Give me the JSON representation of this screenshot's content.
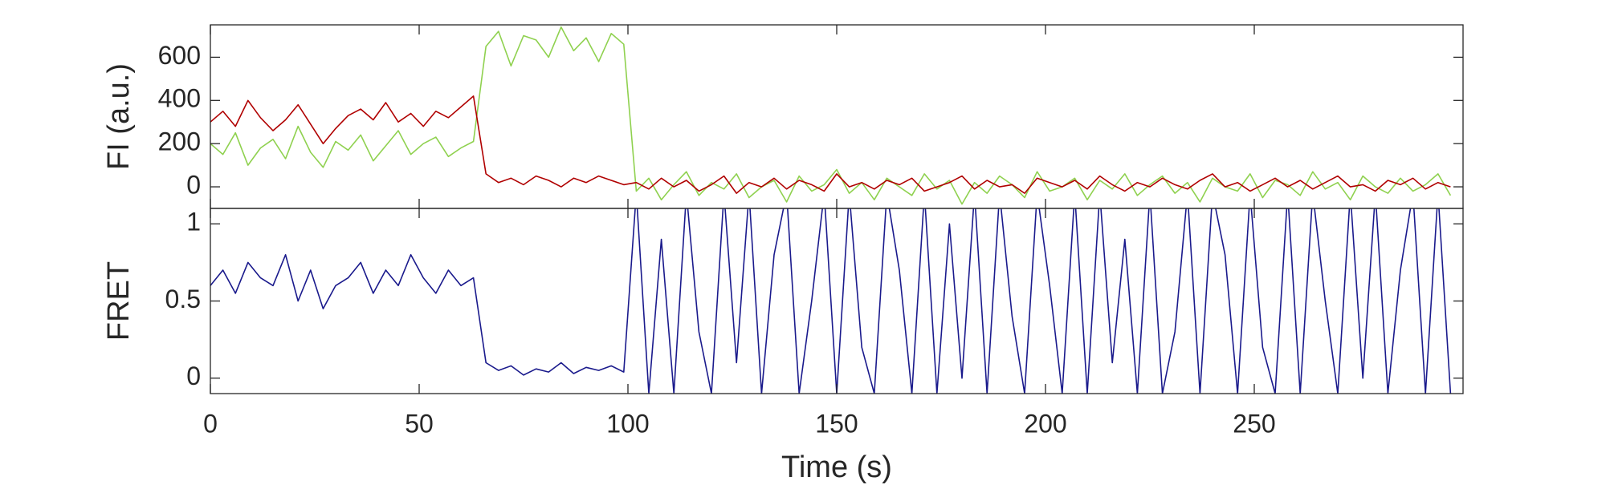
{
  "chart_data": [
    {
      "type": "line",
      "ylabel": "FI (a.u.)",
      "x": [
        0,
        3,
        6,
        9,
        12,
        15,
        18,
        21,
        24,
        27,
        30,
        33,
        36,
        39,
        42,
        45,
        48,
        51,
        54,
        57,
        60,
        63,
        66,
        69,
        72,
        75,
        78,
        81,
        84,
        87,
        90,
        93,
        96,
        99,
        102,
        105,
        108,
        111,
        114,
        117,
        120,
        123,
        126,
        129,
        132,
        135,
        138,
        141,
        144,
        147,
        150,
        153,
        156,
        159,
        162,
        165,
        168,
        171,
        174,
        177,
        180,
        183,
        186,
        189,
        192,
        195,
        198,
        201,
        204,
        207,
        210,
        213,
        216,
        219,
        222,
        225,
        228,
        231,
        234,
        237,
        240,
        243,
        246,
        249,
        252,
        255,
        258,
        261,
        264,
        267,
        270,
        273,
        276,
        279,
        282,
        285,
        288,
        291,
        294,
        297
      ],
      "series": [
        {
          "color": "#8fd14f",
          "values": [
            200,
            150,
            250,
            100,
            180,
            220,
            130,
            280,
            160,
            90,
            210,
            170,
            240,
            120,
            190,
            260,
            150,
            200,
            230,
            140,
            180,
            210,
            650,
            720,
            560,
            700,
            680,
            600,
            740,
            630,
            690,
            580,
            710,
            660,
            -20,
            40,
            -60,
            10,
            70,
            -40,
            20,
            -10,
            60,
            -50,
            0,
            30,
            -70,
            50,
            -20,
            10,
            80,
            -30,
            20,
            -60,
            40,
            0,
            -40,
            60,
            -10,
            30,
            -80,
            20,
            -30,
            50,
            10,
            -50,
            70,
            -20,
            0,
            40,
            -60,
            30,
            -10,
            60,
            -40,
            10,
            50,
            -30,
            20,
            -70,
            40,
            0,
            -20,
            60,
            -50,
            30,
            10,
            -40,
            70,
            -10,
            20,
            -60,
            50,
            0,
            -30,
            40,
            -20,
            10,
            60,
            -40
          ]
        },
        {
          "color": "#b00000",
          "values": [
            300,
            350,
            280,
            400,
            320,
            260,
            310,
            380,
            290,
            200,
            270,
            330,
            360,
            310,
            390,
            300,
            340,
            280,
            350,
            320,
            370,
            420,
            60,
            20,
            40,
            10,
            50,
            30,
            0,
            40,
            20,
            50,
            30,
            10,
            20,
            -10,
            40,
            0,
            30,
            -20,
            10,
            50,
            -30,
            20,
            0,
            40,
            -10,
            30,
            10,
            -20,
            60,
            0,
            20,
            -10,
            30,
            10,
            40,
            -20,
            0,
            20,
            50,
            -10,
            30,
            0,
            10,
            -30,
            40,
            20,
            0,
            30,
            -10,
            50,
            10,
            -20,
            20,
            0,
            40,
            10,
            -10,
            30,
            60,
            0,
            20,
            -20,
            10,
            40,
            0,
            30,
            -10,
            20,
            50,
            0,
            10,
            -20,
            30,
            10,
            40,
            -10,
            20,
            0
          ]
        }
      ],
      "xlim": [
        0,
        300
      ],
      "xticks": [
        0,
        50,
        100,
        150,
        200,
        250
      ],
      "ylim": [
        -100,
        750
      ],
      "yticks": [
        0,
        200,
        400,
        600
      ]
    },
    {
      "type": "line",
      "ylabel": "FRET",
      "xlabel": "Time (s)",
      "x": [
        0,
        3,
        6,
        9,
        12,
        15,
        18,
        21,
        24,
        27,
        30,
        33,
        36,
        39,
        42,
        45,
        48,
        51,
        54,
        57,
        60,
        63,
        66,
        69,
        72,
        75,
        78,
        81,
        84,
        87,
        90,
        93,
        96,
        99,
        102,
        105,
        108,
        111,
        114,
        117,
        120,
        123,
        126,
        129,
        132,
        135,
        138,
        141,
        144,
        147,
        150,
        153,
        156,
        159,
        162,
        165,
        168,
        171,
        174,
        177,
        180,
        183,
        186,
        189,
        192,
        195,
        198,
        201,
        204,
        207,
        210,
        213,
        216,
        219,
        222,
        225,
        228,
        231,
        234,
        237,
        240,
        243,
        246,
        249,
        252,
        255,
        258,
        261,
        264,
        267,
        270,
        273,
        276,
        279,
        282,
        285,
        288,
        291,
        294,
        297
      ],
      "series": [
        {
          "color": "#1a1a8c",
          "values": [
            0.6,
            0.7,
            0.55,
            0.75,
            0.65,
            0.6,
            0.8,
            0.5,
            0.7,
            0.45,
            0.6,
            0.65,
            0.75,
            0.55,
            0.7,
            0.6,
            0.8,
            0.65,
            0.55,
            0.7,
            0.6,
            0.65,
            0.1,
            0.05,
            0.08,
            0.02,
            0.06,
            0.04,
            0.1,
            0.03,
            0.07,
            0.05,
            0.08,
            0.04,
            1.2,
            -0.1,
            0.9,
            -0.1,
            1.2,
            0.3,
            -0.1,
            1.2,
            0.1,
            1.2,
            -0.1,
            0.8,
            1.2,
            -0.1,
            0.5,
            1.2,
            -0.1,
            1.2,
            0.2,
            -0.1,
            1.2,
            0.7,
            -0.1,
            1.2,
            -0.1,
            1,
            0,
            1.2,
            -0.1,
            1.2,
            0.4,
            -0.1,
            1.2,
            0.6,
            -0.1,
            1.2,
            -0.1,
            1.2,
            0.1,
            0.9,
            -0.1,
            1.2,
            -0.1,
            0.3,
            1.2,
            -0.1,
            1.2,
            0.8,
            -0.1,
            1.2,
            0.2,
            -0.1,
            1.2,
            -0.1,
            1.2,
            0.5,
            -0.1,
            1.2,
            0,
            1.2,
            -0.1,
            0.7,
            1.2,
            -0.1,
            1.2,
            -0.1
          ]
        }
      ],
      "xlim": [
        0,
        300
      ],
      "xticks": [
        0,
        50,
        100,
        150,
        200,
        250
      ],
      "ylim": [
        -0.1,
        1.1
      ],
      "yticks": [
        0,
        0.5,
        1
      ]
    }
  ]
}
